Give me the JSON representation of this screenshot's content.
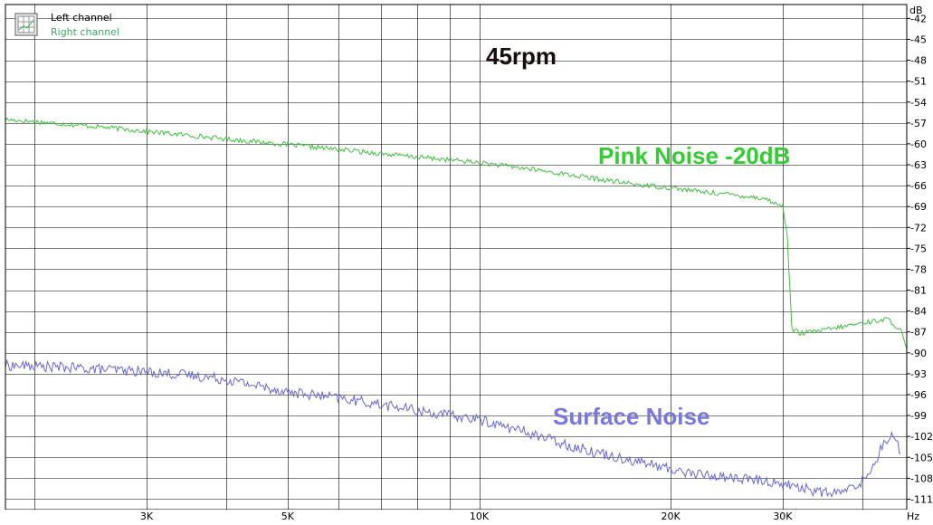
{
  "chart_data": {
    "type": "line",
    "title": "",
    "x_scale": "log",
    "xlim": [
      1800,
      47000
    ],
    "ylim": [
      -112.5,
      -40
    ],
    "grid": true,
    "y_unit": "dB",
    "x_unit": "Hz",
    "x_ticks": [
      {
        "value": 3000,
        "label": "3K"
      },
      {
        "value": 5000,
        "label": "5K"
      },
      {
        "value": 10000,
        "label": "10K"
      },
      {
        "value": 20000,
        "label": "20K"
      },
      {
        "value": 30000,
        "label": "30K"
      }
    ],
    "x_gridlines": [
      2000,
      3000,
      4000,
      5000,
      6000,
      7000,
      8000,
      9000,
      10000,
      20000,
      30000,
      40000
    ],
    "y_ticks": [
      -42,
      -45,
      -48,
      -51,
      -54,
      -57,
      -60,
      -63,
      -66,
      -69,
      -72,
      -75,
      -78,
      -81,
      -84,
      -87,
      -90,
      -93,
      -96,
      -99,
      -102,
      -105,
      -108,
      -111
    ],
    "y_gridlines": [
      -42,
      -45,
      -48,
      -51,
      -54,
      -57,
      -60,
      -63,
      -66,
      -69,
      -72,
      -75,
      -78,
      -81,
      -84,
      -87,
      -90,
      -93,
      -96,
      -99,
      -102,
      -105,
      -108,
      -111
    ],
    "legend": {
      "position": "top-left",
      "entries": [
        {
          "label": "Left channel",
          "color": "#000000"
        },
        {
          "label": "Right channel",
          "color": "#3aaa60"
        }
      ]
    },
    "annotations": [
      {
        "text": "45rpm",
        "color": "#1a0d0d"
      },
      {
        "text": "Pink Noise -20dB",
        "color": "#33cc33"
      },
      {
        "text": "Surface Noise",
        "color": "#7777dd"
      }
    ],
    "series": [
      {
        "color": "#3fc03f",
        "x": [
          1800,
          2500,
          3000,
          4000,
          5000,
          6000,
          7000,
          8000,
          9000,
          10000,
          12000,
          14000,
          16000,
          18000,
          20000,
          22000,
          25000,
          28000,
          30000,
          30500,
          31000,
          32000,
          35000,
          38000,
          40000,
          42000,
          44000,
          46000,
          47000
        ],
        "y": [
          -56.5,
          -57.5,
          -58.2,
          -59.3,
          -60.1,
          -60.8,
          -61.4,
          -61.9,
          -62.3,
          -62.7,
          -63.6,
          -64.5,
          -65.3,
          -65.9,
          -66.3,
          -66.8,
          -67.3,
          -67.8,
          -69.0,
          -73.0,
          -86.5,
          -87.2,
          -86.7,
          -86.1,
          -85.7,
          -85.4,
          -85.2,
          -86.8,
          -89.5
        ]
      },
      {
        "color": "#6666dd",
        "x": [
          1800,
          2000,
          2500,
          3000,
          3500,
          4000,
          5000,
          6000,
          7000,
          8000,
          9000,
          10000,
          12000,
          14000,
          16000,
          18000,
          20000,
          22000,
          25000,
          28000,
          30000,
          32000,
          34000,
          36000,
          38000,
          40000,
          41000,
          42000,
          43000,
          44000,
          45000,
          46000
        ],
        "y": [
          -91.8,
          -91.9,
          -92.3,
          -92.7,
          -93.2,
          -93.8,
          -95.6,
          -96.5,
          -97.4,
          -98.3,
          -99.0,
          -99.6,
          -101.5,
          -103.4,
          -104.7,
          -105.7,
          -106.7,
          -107.4,
          -107.9,
          -108.4,
          -108.8,
          -109.3,
          -109.9,
          -110.2,
          -109.7,
          -108.4,
          -107.3,
          -105.4,
          -103.4,
          -101.9,
          -102.1,
          -104.4
        ]
      }
    ]
  }
}
